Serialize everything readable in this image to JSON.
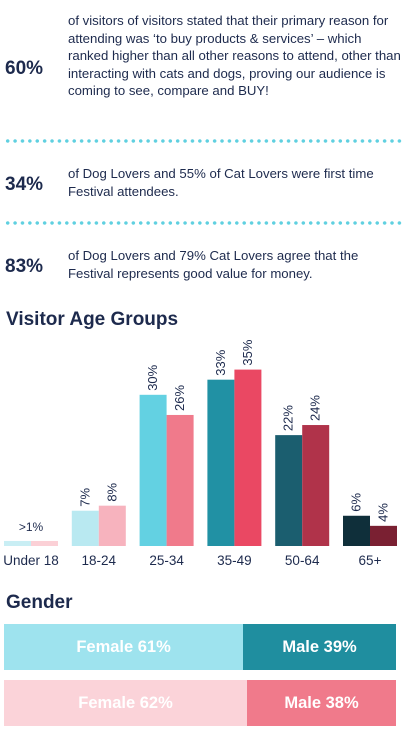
{
  "stats": [
    {
      "percent": "60%",
      "text": "of visitors of visitors stated that their primary reason for attending was ‘to buy products & services’ – which ranked higher than all other reasons to attend, other than interacting with cats and dogs, proving our audience is coming to see, compare and BUY!"
    },
    {
      "percent": "34%",
      "text": "of Dog Lovers and 55% of Cat Lovers were first time Festival attendees."
    },
    {
      "percent": "83%",
      "text": "of Dog Lovers and 79% Cat Lovers agree that the Festival represents good value for money."
    }
  ],
  "colors": {
    "text": "#1d2a4d",
    "dots": "#5fd0e0"
  },
  "chart_data": {
    "type": "bar",
    "title": "Visitor Age Groups",
    "categories": [
      "Under 18",
      "18-24",
      "25-34",
      "35-49",
      "50-64",
      "65+"
    ],
    "series": [
      {
        "values": [
          1,
          7,
          30,
          33,
          22,
          6
        ],
        "labels": [
          ">1%",
          "7%",
          "30%",
          "33%",
          "22%",
          "6%"
        ]
      },
      {
        "values": [
          1,
          8,
          26,
          35,
          24,
          4
        ],
        "labels": [
          "",
          "8%",
          "26%",
          "35%",
          "24%",
          "4%"
        ]
      }
    ],
    "bar_colors": [
      [
        "#c9eef4",
        "#fbd0d6"
      ],
      [
        "#b9e9f1",
        "#f7b3be"
      ],
      [
        "#63d1e2",
        "#f07a8b"
      ],
      [
        "#2191a4",
        "#ea4863"
      ],
      [
        "#1b5e6f",
        "#b0334a"
      ],
      [
        "#0f2f3a",
        "#7a2032"
      ]
    ],
    "grid": false
  },
  "gender": {
    "title": "Gender",
    "rows": [
      {
        "segments": [
          {
            "label": "Female 61%",
            "value": 61,
            "color": "#9ee3ee"
          },
          {
            "label": "Male 39%",
            "value": 39,
            "color": "#1f8e9f"
          }
        ]
      },
      {
        "segments": [
          {
            "label": "Female 62%",
            "value": 62,
            "color": "#fbd3d9"
          },
          {
            "label": "Male 38%",
            "value": 38,
            "color": "#f07a8b"
          }
        ]
      }
    ]
  }
}
